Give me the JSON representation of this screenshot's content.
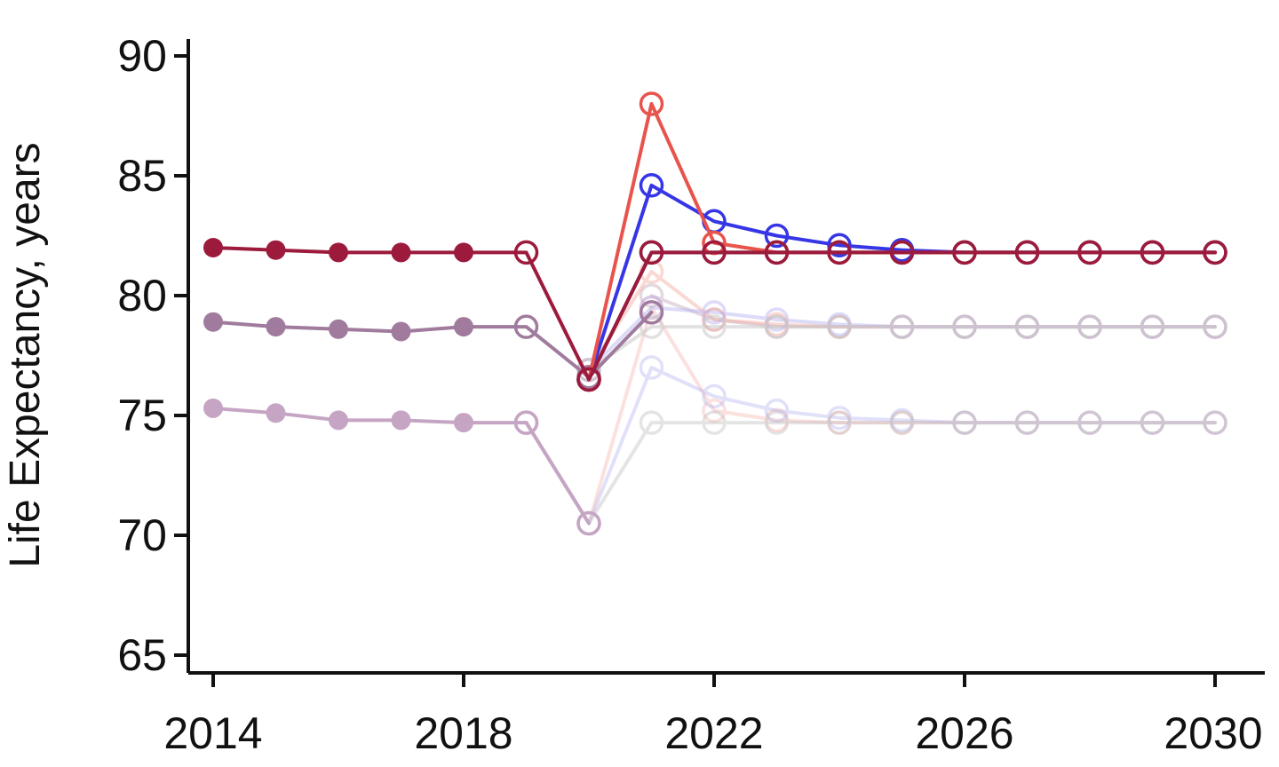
{
  "chart_data": {
    "type": "line",
    "title": "",
    "xlabel": "",
    "ylabel": "Life Expectancy, years",
    "xlim": [
      2014,
      2030
    ],
    "ylim": [
      65,
      90
    ],
    "x_ticks": [
      2014,
      2018,
      2022,
      2026,
      2030
    ],
    "y_ticks": [
      65,
      70,
      75,
      80,
      85,
      90
    ],
    "grid": false,
    "legend": "none",
    "observed_through": 2018,
    "series": [
      {
        "color": "#a8849f",
        "opacity": 0.3,
        "x": [
          2021,
          2022,
          2023,
          2024,
          2025,
          2026,
          2027,
          2028,
          2029,
          2030
        ],
        "values": [
          80.0,
          79.0,
          78.7,
          78.7,
          78.7,
          78.7,
          78.7,
          78.7,
          78.7,
          78.7
        ]
      },
      {
        "color": "#f4a9a0",
        "opacity": 0.35,
        "x": [
          2019,
          2020,
          2021,
          2022,
          2023,
          2024,
          2025,
          2026,
          2027,
          2028,
          2029,
          2030
        ],
        "values": [
          74.7,
          70.5,
          79.5,
          75.2,
          74.8,
          74.7,
          74.7,
          74.7,
          74.7,
          74.7,
          74.7,
          74.7
        ]
      },
      {
        "color": "#a9a8f0",
        "opacity": 0.35,
        "x": [
          2019,
          2020,
          2021,
          2022,
          2023,
          2024,
          2025,
          2026,
          2027,
          2028,
          2029,
          2030
        ],
        "values": [
          74.7,
          70.5,
          77.0,
          75.8,
          75.2,
          74.9,
          74.8,
          74.7,
          74.7,
          74.7,
          74.7,
          74.7
        ]
      },
      {
        "color": "#bdbdbd",
        "opacity": 0.4,
        "x": [
          2019,
          2020,
          2021,
          2022,
          2023,
          2024,
          2025,
          2026,
          2027,
          2028,
          2029,
          2030
        ],
        "values": [
          74.7,
          70.5,
          74.7,
          74.7,
          74.7,
          74.7,
          74.7,
          74.7,
          74.7,
          74.7,
          74.7,
          74.7
        ]
      },
      {
        "color": "#c5a5c3",
        "opacity": 1.0,
        "x": [
          2014,
          2015,
          2016,
          2017,
          2018,
          2019,
          2020
        ],
        "values": [
          75.3,
          75.1,
          74.8,
          74.8,
          74.7,
          74.7,
          70.5
        ]
      },
      {
        "color": "#f4a9a0",
        "opacity": 0.45,
        "x": [
          2020,
          2021,
          2022,
          2023,
          2024,
          2025,
          2026,
          2027,
          2028,
          2029,
          2030
        ],
        "values": [
          76.9,
          81.0,
          79.0,
          78.8,
          78.7,
          78.7,
          78.7,
          78.7,
          78.7,
          78.7,
          78.7
        ]
      },
      {
        "color": "#b4b0f0",
        "opacity": 0.45,
        "x": [
          2020,
          2021,
          2022,
          2023,
          2024,
          2025,
          2026,
          2027,
          2028,
          2029,
          2030
        ],
        "values": [
          76.9,
          79.5,
          79.3,
          79.0,
          78.8,
          78.7,
          78.7,
          78.7,
          78.7,
          78.7,
          78.7
        ]
      },
      {
        "color": "#c9c9c9",
        "opacity": 0.55,
        "x": [
          2020,
          2021,
          2022,
          2023,
          2024,
          2025,
          2026,
          2027,
          2028,
          2029,
          2030
        ],
        "values": [
          76.9,
          78.7,
          78.7,
          78.7,
          78.7,
          78.7,
          78.7,
          78.7,
          78.7,
          78.7,
          78.7
        ]
      },
      {
        "color": "#a07b9d",
        "opacity": 1.0,
        "x": [
          2014,
          2015,
          2016,
          2017,
          2018,
          2019,
          2020,
          2021
        ],
        "values": [
          78.9,
          78.7,
          78.6,
          78.5,
          78.7,
          78.7,
          76.6,
          79.3
        ]
      },
      {
        "color": "#444444",
        "opacity": 1.0,
        "x": [
          2020,
          2021,
          2022,
          2023,
          2024,
          2025,
          2026,
          2027,
          2028,
          2029,
          2030
        ],
        "values": [
          76.5,
          81.8,
          81.8,
          81.8,
          81.8,
          81.8,
          81.8,
          81.8,
          81.8,
          81.8,
          81.8
        ]
      },
      {
        "color": "#3636e6",
        "opacity": 1.0,
        "x": [
          2020,
          2021,
          2022,
          2023,
          2024,
          2025,
          2026,
          2027,
          2028,
          2029,
          2030
        ],
        "values": [
          76.5,
          84.6,
          83.1,
          82.5,
          82.1,
          81.9,
          81.8,
          81.8,
          81.8,
          81.8,
          81.8
        ]
      },
      {
        "color": "#e8544c",
        "opacity": 1.0,
        "x": [
          2020,
          2021,
          2022,
          2023,
          2024,
          2025,
          2026,
          2027,
          2028,
          2029,
          2030
        ],
        "values": [
          76.5,
          88.0,
          82.2,
          81.8,
          81.8,
          81.8,
          81.8,
          81.8,
          81.8,
          81.8,
          81.8
        ]
      },
      {
        "color": "#9c1a3c",
        "opacity": 1.0,
        "x": [
          2014,
          2015,
          2016,
          2017,
          2018,
          2019,
          2020,
          2021,
          2022,
          2023,
          2024,
          2025,
          2026,
          2027,
          2028,
          2029,
          2030
        ],
        "values": [
          82.0,
          81.9,
          81.8,
          81.8,
          81.8,
          81.8,
          76.5,
          81.8,
          81.8,
          81.8,
          81.8,
          81.8,
          81.8,
          81.8,
          81.8,
          81.8,
          81.8
        ]
      }
    ]
  }
}
